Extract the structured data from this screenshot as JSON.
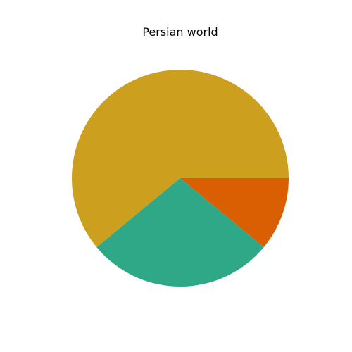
{
  "chart_data": {
    "type": "pie",
    "title": "Persian world",
    "legend": "none",
    "slices": [
      {
        "value": 61,
        "color": "#cc9f1f"
      },
      {
        "value": 28,
        "color": "#2ea886"
      },
      {
        "value": 11,
        "color": "#d95f02"
      }
    ]
  }
}
